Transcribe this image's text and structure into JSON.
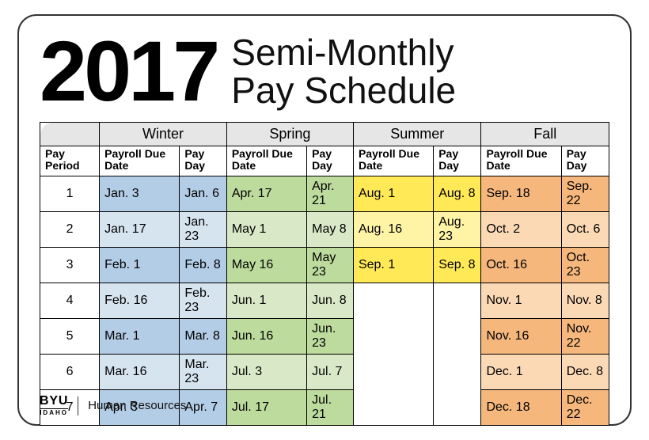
{
  "header": {
    "year": "2017",
    "subtitle_line1": "Semi-Monthly",
    "subtitle_line2": "Pay Schedule"
  },
  "table": {
    "pay_period_label": "Pay Period",
    "seasons": [
      "Winter",
      "Spring",
      "Summer",
      "Fall"
    ],
    "sub_columns": [
      "Payroll Due Date",
      "Pay Day"
    ],
    "colors": {
      "corner_bg": "#e6e6e6",
      "season_bg": "#e6e6e6",
      "winter_light": "#d6e4f0",
      "winter_dark": "#b3cde6",
      "spring_light": "#d9e9c7",
      "spring_dark": "#bedb9e",
      "summer_light": "#fff3a6",
      "summer_dark": "#ffe957",
      "fall_light": "#fbd9b5",
      "fall_dark": "#f5b77c"
    },
    "rows": [
      {
        "period": "1",
        "winter": [
          "Jan. 3",
          "Jan. 6"
        ],
        "spring": [
          "Apr. 17",
          "Apr. 21"
        ],
        "summer": [
          "Aug. 1",
          "Aug. 8"
        ],
        "fall": [
          "Sep. 18",
          "Sep. 22"
        ],
        "shade": "dark"
      },
      {
        "period": "2",
        "winter": [
          "Jan. 17",
          "Jan. 23"
        ],
        "spring": [
          "May 1",
          "May 8"
        ],
        "summer": [
          "Aug. 16",
          "Aug. 23"
        ],
        "fall": [
          "Oct. 2",
          "Oct. 6"
        ],
        "shade": "light"
      },
      {
        "period": "3",
        "winter": [
          "Feb. 1",
          "Feb. 8"
        ],
        "spring": [
          "May 16",
          "May 23"
        ],
        "summer": [
          "Sep. 1",
          "Sep. 8"
        ],
        "fall": [
          "Oct. 16",
          "Oct. 23"
        ],
        "shade": "dark"
      },
      {
        "period": "4",
        "winter": [
          "Feb. 16",
          "Feb. 23"
        ],
        "spring": [
          "Jun. 1",
          "Jun. 8"
        ],
        "summer": null,
        "fall": [
          "Nov. 1",
          "Nov. 8"
        ],
        "shade": "light"
      },
      {
        "period": "5",
        "winter": [
          "Mar. 1",
          "Mar. 8"
        ],
        "spring": [
          "Jun. 16",
          "Jun. 23"
        ],
        "summer": null,
        "fall": [
          "Nov. 16",
          "Nov. 22"
        ],
        "shade": "dark"
      },
      {
        "period": "6",
        "winter": [
          "Mar. 16",
          "Mar. 23"
        ],
        "spring": [
          "Jul. 3",
          "Jul. 7"
        ],
        "summer": null,
        "fall": [
          "Dec. 1",
          "Dec. 8"
        ],
        "shade": "light"
      },
      {
        "period": "7",
        "winter": [
          "Apr. 3",
          "Apr. 7"
        ],
        "spring": [
          "Jul. 17",
          "Jul. 21"
        ],
        "summer": null,
        "fall": [
          "Dec. 18",
          "Dec. 22"
        ],
        "shade": "dark"
      }
    ]
  },
  "footer": {
    "logo_top": "BYU",
    "logo_bottom": "IDAHO",
    "department": "Human Resources"
  }
}
